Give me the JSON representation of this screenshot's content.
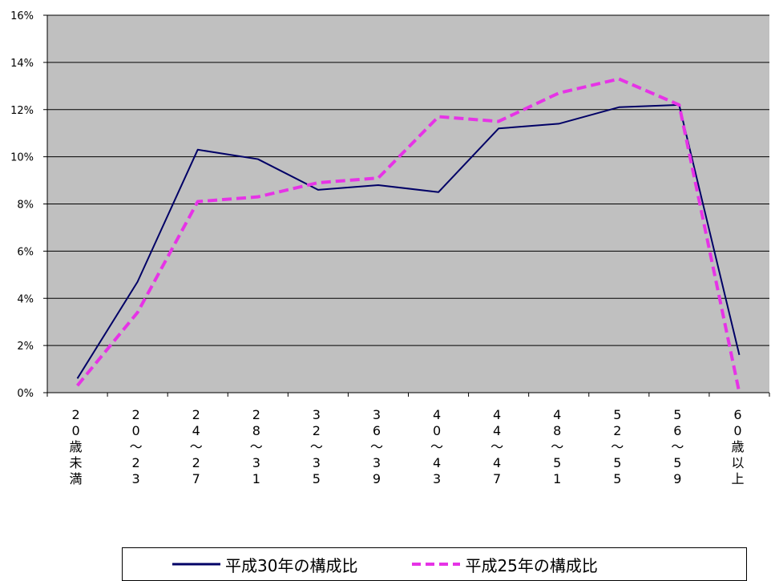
{
  "chart_data": {
    "type": "line",
    "categories": [
      "20歳未満",
      "20〜23",
      "24〜27",
      "28〜31",
      "32〜35",
      "36〜39",
      "40〜43",
      "44〜47",
      "48〜51",
      "52〜55",
      "56〜59",
      "60歳以上"
    ],
    "category_labels": [
      [
        "2",
        "0",
        "歳",
        "未",
        "満"
      ],
      [
        "2",
        "0",
        "〜",
        "2",
        "3"
      ],
      [
        "2",
        "4",
        "〜",
        "2",
        "7"
      ],
      [
        "2",
        "8",
        "〜",
        "3",
        "1"
      ],
      [
        "3",
        "2",
        "〜",
        "3",
        "5"
      ],
      [
        "3",
        "6",
        "〜",
        "3",
        "9"
      ],
      [
        "4",
        "0",
        "〜",
        "4",
        "3"
      ],
      [
        "4",
        "4",
        "〜",
        "4",
        "7"
      ],
      [
        "4",
        "8",
        "〜",
        "5",
        "1"
      ],
      [
        "5",
        "2",
        "〜",
        "5",
        "5"
      ],
      [
        "5",
        "6",
        "〜",
        "5",
        "9"
      ],
      [
        "6",
        "0",
        "歳",
        "以",
        "上"
      ]
    ],
    "series": [
      {
        "name": "平成30年の構成比",
        "values": [
          0.6,
          4.7,
          10.3,
          9.9,
          8.6,
          8.8,
          8.5,
          11.2,
          11.4,
          12.1,
          12.2,
          1.6
        ],
        "color": "#000066",
        "style": "solid"
      },
      {
        "name": "平成25年の構成比",
        "values": [
          0.3,
          3.4,
          8.1,
          8.3,
          8.9,
          9.1,
          11.7,
          11.5,
          12.7,
          13.3,
          12.2,
          0.0
        ],
        "color": "#e633e6",
        "style": "dashed"
      }
    ],
    "yticks": [
      "0%",
      "2%",
      "4%",
      "6%",
      "8%",
      "10%",
      "12%",
      "14%",
      "16%"
    ],
    "ylim": [
      0,
      16
    ],
    "ystep": 2,
    "grid": true,
    "plot_background": "#c0c0c0",
    "legend_position": "bottom"
  }
}
